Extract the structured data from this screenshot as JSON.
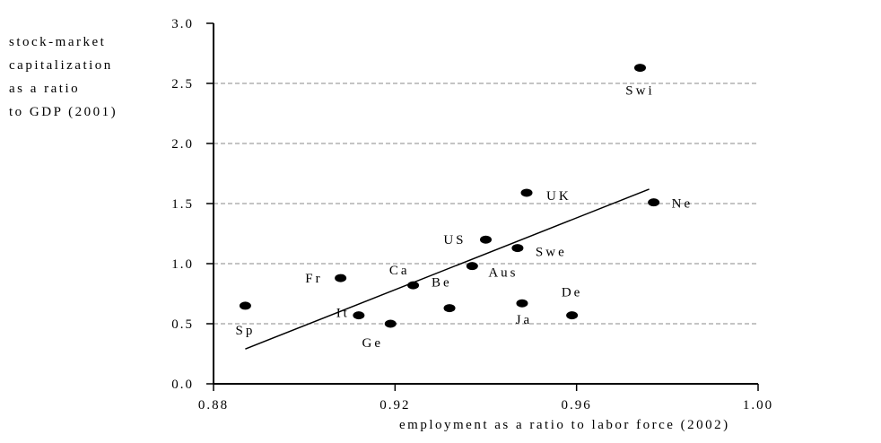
{
  "chart_data": {
    "type": "scatter",
    "ylabel_lines": [
      "stock-market",
      "capitalization",
      "as a ratio",
      "to GDP (2001)"
    ],
    "xlabel": "employment as a ratio to labor force (2002)",
    "xlim": [
      0.88,
      1.0
    ],
    "ylim": [
      0.0,
      3.0
    ],
    "xticks": [
      "0.88",
      "0.92",
      "0.96",
      "1.00"
    ],
    "yticks": [
      "0.0",
      "0.5",
      "1.0",
      "1.5",
      "2.0",
      "2.5",
      "3.0"
    ],
    "grid": "horizontal dashed",
    "points": [
      {
        "label": "Swi",
        "x": 0.974,
        "y": 2.63
      },
      {
        "label": "UK",
        "x": 0.949,
        "y": 1.59
      },
      {
        "label": "Ne",
        "x": 0.977,
        "y": 1.51
      },
      {
        "label": "US",
        "x": 0.94,
        "y": 1.2
      },
      {
        "label": "Swe",
        "x": 0.947,
        "y": 1.13
      },
      {
        "label": "Aus",
        "x": 0.937,
        "y": 0.98
      },
      {
        "label": "Fr",
        "x": 0.908,
        "y": 0.88
      },
      {
        "label": "Ca",
        "x": 0.924,
        "y": 0.82
      },
      {
        "label": "Ja",
        "x": 0.948,
        "y": 0.67
      },
      {
        "label": "Sp",
        "x": 0.887,
        "y": 0.65
      },
      {
        "label": "Be",
        "x": 0.932,
        "y": 0.63
      },
      {
        "label": "De",
        "x": 0.959,
        "y": 0.57
      },
      {
        "label": "It",
        "x": 0.912,
        "y": 0.57
      },
      {
        "label": "Ge",
        "x": 0.919,
        "y": 0.5
      }
    ],
    "trendline": {
      "x": [
        0.887,
        0.976
      ],
      "y": [
        0.29,
        1.62
      ]
    }
  }
}
